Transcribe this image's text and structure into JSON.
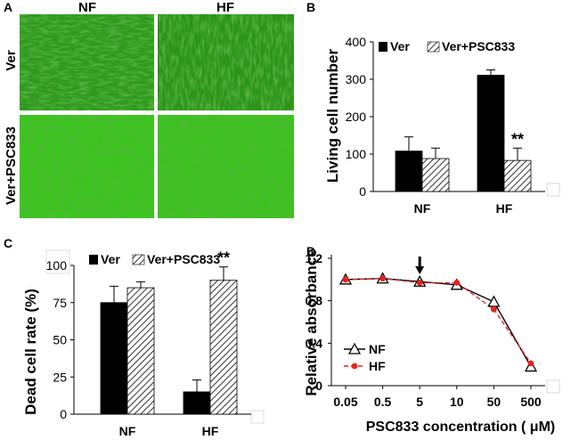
{
  "panels": {
    "A": {
      "letter": "A",
      "col_labels": [
        "NF",
        "HF"
      ],
      "row_labels": [
        "Ver",
        "Ver+PSC833"
      ]
    }
  },
  "colors": {
    "cell_green": "#3fbf22",
    "black": "#000000"
  },
  "chart_data": [
    {
      "id": "B",
      "letter": "B",
      "type": "bar",
      "ylabel": "Living cell number",
      "xlabel": "",
      "categories": [
        "NF",
        "HF"
      ],
      "series": [
        {
          "name": "Ver",
          "values": [
            108,
            311
          ],
          "errors": [
            38,
            14
          ]
        },
        {
          "name": "Ver+PSC833",
          "values": [
            88,
            83
          ],
          "errors": [
            28,
            33
          ]
        }
      ],
      "ylim": [
        0,
        400
      ],
      "yticks": [
        "0",
        "100",
        "200",
        "300",
        "400"
      ],
      "annotation": {
        "text": "**",
        "category": 1,
        "series": 1
      },
      "legend": "top"
    },
    {
      "id": "C",
      "letter": "C",
      "type": "bar",
      "ylabel": "Dead cell rate (%)",
      "xlabel": "",
      "categories": [
        "NF",
        "HF"
      ],
      "series": [
        {
          "name": "Ver",
          "values": [
            75,
            15
          ],
          "errors": [
            11,
            8
          ]
        },
        {
          "name": "Ver+PSC833",
          "values": [
            85,
            90
          ],
          "errors": [
            4,
            9
          ]
        }
      ],
      "ylim": [
        0,
        100
      ],
      "yticks": [
        "0",
        "25",
        "50",
        "75",
        "100"
      ],
      "annotation": {
        "text": "**",
        "category": 1,
        "series": 1
      },
      "legend": "top"
    },
    {
      "id": "D",
      "letter": "D",
      "type": "line",
      "ylabel": "Relative absorbance",
      "xlabel": "PSC833 concentration ( μM)",
      "categories": [
        "0.05",
        "0.5",
        "5",
        "10",
        "50",
        "500"
      ],
      "series": [
        {
          "name": "NF",
          "values": [
            1.0,
            1.01,
            0.98,
            0.95,
            0.79,
            0.18
          ]
        },
        {
          "name": "HF",
          "values": [
            1.0,
            1.01,
            0.97,
            0.97,
            0.72,
            0.21
          ]
        }
      ],
      "ylim": [
        0,
        1.2
      ],
      "yticks": [
        "0",
        "0.4",
        "0.8",
        "1.2"
      ],
      "arrow_category": 2,
      "legend": "bottom-left"
    }
  ]
}
